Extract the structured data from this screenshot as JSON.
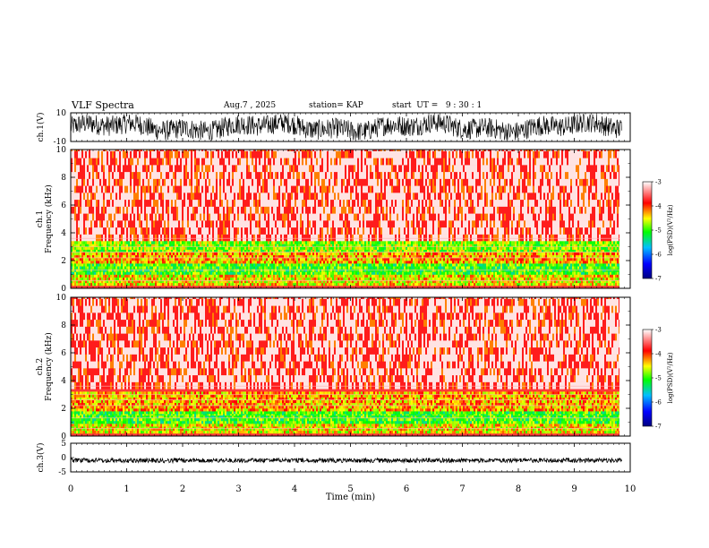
{
  "header": {
    "title": "VLF Spectra",
    "date": "Aug.7 , 2025",
    "station": "station= KAP",
    "start": "start  UT =   9 : 30 : 1"
  },
  "chart_data": [
    {
      "type": "line",
      "panel": "ch1-waveform",
      "ylabel": "ch.1(V)",
      "ylim": [
        -10,
        10
      ],
      "yticks": [
        "10",
        "-10"
      ],
      "description_series": "noisy voltage trace spanning roughly full range"
    },
    {
      "type": "heatmap",
      "panel": "ch1-spectrogram",
      "ylabel": "Frequency (kHz)",
      "channel_label": "ch.1",
      "ylim": [
        0,
        10
      ],
      "yticks": [
        "0",
        "2",
        "4",
        "6",
        "8",
        "10"
      ],
      "colorbar": {
        "label": "log(PSD)(V²/Hz)",
        "ticks": [
          "-3",
          "-4",
          "-5",
          "-6",
          "-7"
        ],
        "range": [
          -7,
          -3
        ]
      },
      "bands": [
        {
          "freq_khz": [
            0.2,
            1.0
          ],
          "level": -4.5
        },
        {
          "freq_khz": [
            1.0,
            1.8
          ],
          "level": -5.0
        },
        {
          "freq_khz": [
            1.8,
            2.6
          ],
          "level": -4.3
        },
        {
          "freq_khz": [
            2.6,
            3.4
          ],
          "level": -4.8
        },
        {
          "freq_khz": [
            3.4,
            10.0
          ],
          "level": -3.5
        }
      ]
    },
    {
      "type": "heatmap",
      "panel": "ch2-spectrogram",
      "ylabel": "Frequency (kHz)",
      "channel_label": "ch.2",
      "ylim": [
        0,
        10
      ],
      "yticks": [
        "0",
        "2",
        "4",
        "6",
        "8",
        "10"
      ],
      "colorbar": {
        "label": "log(PSD)(V²/Hz)",
        "ticks": [
          "-3",
          "-4",
          "-5",
          "-6",
          "-7"
        ],
        "range": [
          -7,
          -3
        ]
      },
      "bands": [
        {
          "freq_khz": [
            0.2,
            0.9
          ],
          "level": -4.5
        },
        {
          "freq_khz": [
            0.9,
            1.8
          ],
          "level": -5.0
        },
        {
          "freq_khz": [
            1.8,
            3.2
          ],
          "level": -4.3
        },
        {
          "freq_khz": [
            3.2,
            10.0
          ],
          "level": -3.5
        }
      ]
    },
    {
      "type": "line",
      "panel": "ch3-waveform",
      "ylabel": "ch.3(V)",
      "ylim": [
        -5,
        5
      ],
      "yticks": [
        "5",
        "0",
        "-5"
      ],
      "level_v": -1
    }
  ],
  "xaxis": {
    "label": "Time (min)",
    "xlim": [
      0,
      10
    ],
    "ticks": [
      "0",
      "1",
      "2",
      "3",
      "4",
      "5",
      "6",
      "7",
      "8",
      "9",
      "10"
    ],
    "data_end_min": 9.85
  },
  "colors": {
    "low": "#00008b",
    "mid_low": "#1e90ff",
    "mid": "#00ff00",
    "mid_high": "#ffff00",
    "high": "#ff0000",
    "top": "#ffffff"
  }
}
